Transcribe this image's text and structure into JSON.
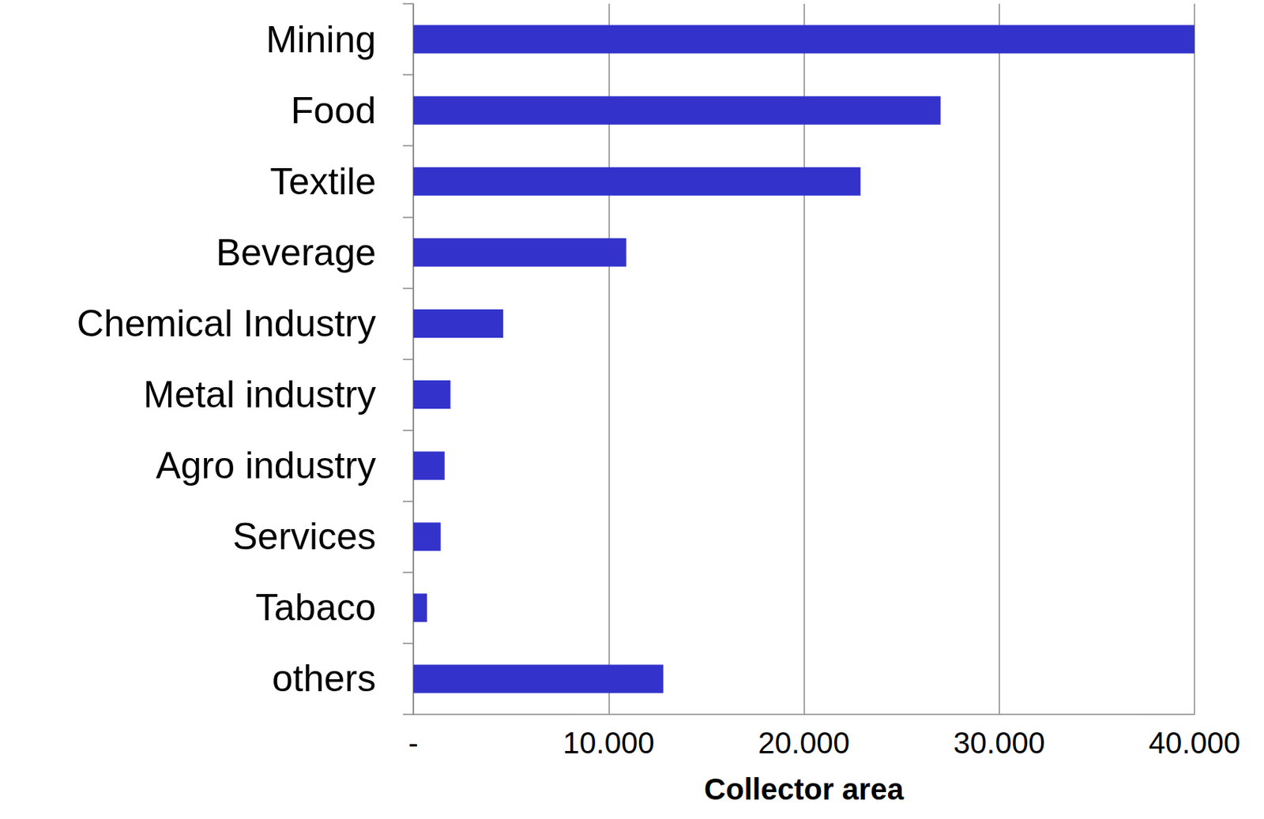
{
  "chart_data": {
    "type": "bar",
    "orientation": "horizontal",
    "categories": [
      "Mining",
      "Food",
      "Textile",
      "Beverage",
      "Chemical Industry",
      "Metal industry",
      "Agro industry",
      "Services",
      "Tabaco",
      "others"
    ],
    "values": [
      40000,
      27000,
      22900,
      10900,
      4600,
      1900,
      1600,
      1400,
      700,
      12800
    ],
    "color": "#3333cc",
    "x_label": "Collector area",
    "xlim": [
      0,
      40000
    ],
    "xticks": [
      {
        "value": 0,
        "label": "-"
      },
      {
        "value": 10000,
        "label": "10.000"
      },
      {
        "value": 20000,
        "label": "20.000"
      },
      {
        "value": 30000,
        "label": "30.000"
      },
      {
        "value": 40000,
        "label": "40.000"
      }
    ],
    "grid": true
  }
}
